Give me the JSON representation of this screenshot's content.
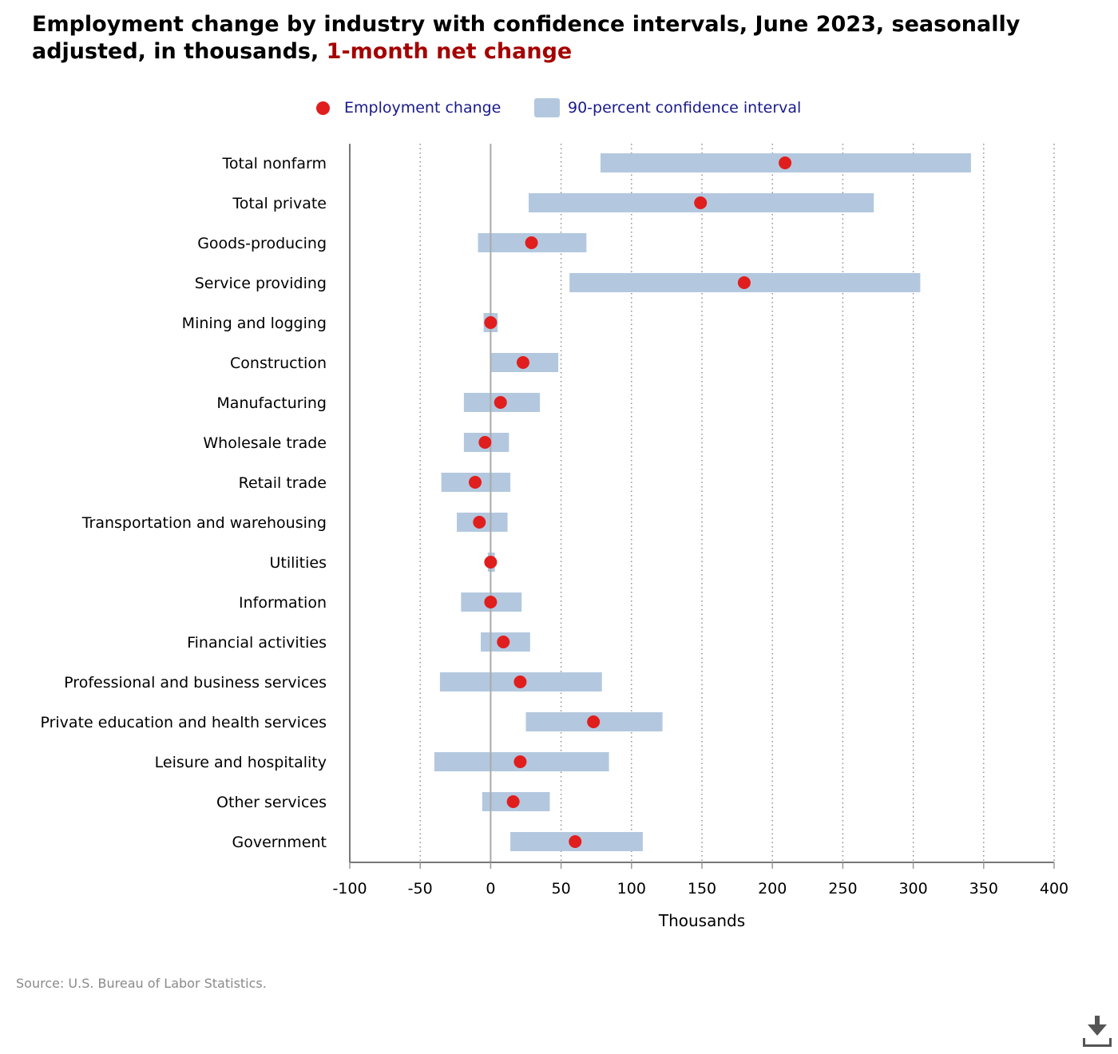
{
  "title": {
    "main": "Employment change by industry with confidence intervals, June 2023, seasonally adjusted, in thousands,",
    "highlight": "1-month net change"
  },
  "legend": {
    "dot_label": "Employment change",
    "box_label": "90-percent confidence interval"
  },
  "source": "Source: U.S. Bureau of Labor Statistics.",
  "icons": {
    "download": "download-icon"
  },
  "colors": {
    "point": "#e01e1e",
    "interval": "#b3c8df",
    "highlight": "#a50000",
    "legend_text": "#1a1a8c",
    "zero_line": "#aaaaaa",
    "grid": "#888888"
  },
  "chart_data": {
    "type": "scatter",
    "orientation": "horizontal",
    "title": "Employment change by industry with confidence intervals, June 2023, seasonally adjusted, in thousands, 1-month net change",
    "xlabel": "Thousands",
    "ylabel": "",
    "xlim": [
      -100,
      400
    ],
    "xticks": [
      -100,
      -50,
      0,
      50,
      100,
      150,
      200,
      250,
      300,
      350,
      400
    ],
    "xtick_labels": [
      "-100",
      "-50",
      "0",
      "50",
      "100",
      "150",
      "200",
      "250",
      "300",
      "350",
      "400"
    ],
    "grid": "vertical dotted",
    "legend_position": "top-center",
    "categories": [
      "Total nonfarm",
      "Total private",
      "Goods-producing",
      "Service providing",
      "Mining and logging",
      "Construction",
      "Manufacturing",
      "Wholesale trade",
      "Retail trade",
      "Transportation and warehousing",
      "Utilities",
      "Information",
      "Financial activities",
      "Professional and business services",
      "Private education and health services",
      "Leisure and hospitality",
      "Other services",
      "Government"
    ],
    "series": [
      {
        "name": "Employment change",
        "values": [
          209,
          149,
          29,
          180,
          0,
          23,
          7,
          -4,
          -11,
          -8,
          0,
          0,
          9,
          21,
          73,
          21,
          16,
          60
        ]
      },
      {
        "name": "90-percent confidence interval",
        "low": [
          78,
          27,
          -9,
          56,
          -5,
          0,
          -19,
          -19,
          -35,
          -24,
          -2,
          -21,
          -7,
          -36,
          25,
          -40,
          -6,
          14
        ],
        "high": [
          341,
          272,
          68,
          305,
          5,
          48,
          35,
          13,
          14,
          12,
          3,
          22,
          28,
          79,
          122,
          84,
          42,
          108
        ]
      }
    ]
  }
}
